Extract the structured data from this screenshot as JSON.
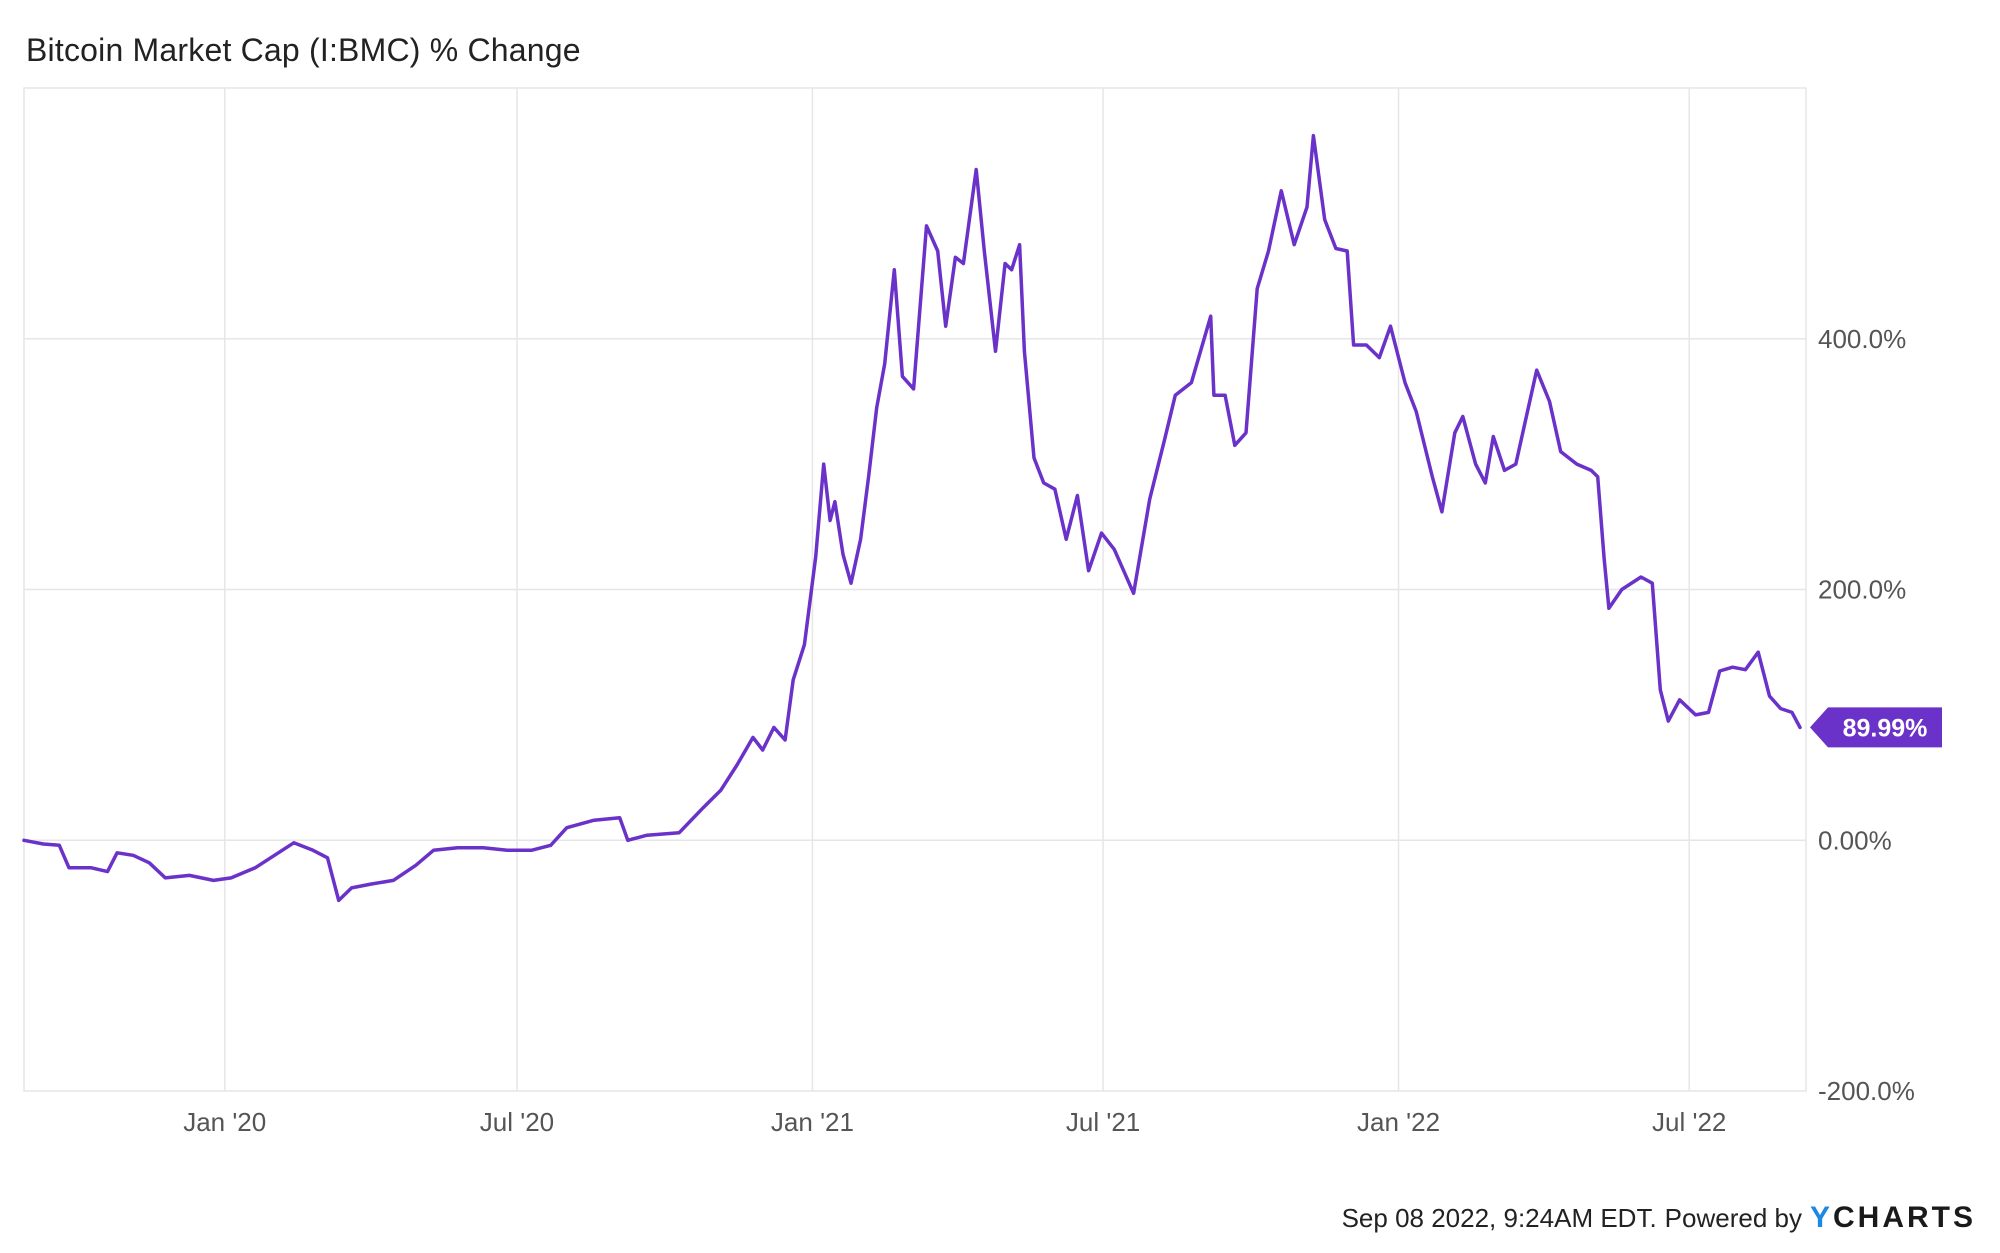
{
  "page": {
    "title": "Bitcoin Market Cap (I:BMC) % Change",
    "timestamp": "Sep 08 2022, 9:24AM EDT.",
    "powered_by": "Powered by",
    "brand_first": "Y",
    "brand_rest": "CHARTS"
  },
  "colors": {
    "line": "#6a32c9",
    "grid": "#e6e6e6",
    "axis_text": "#555555",
    "badge_bg": "#6a32c9",
    "badge_text": "#ffffff"
  },
  "chart_data": {
    "type": "line",
    "title": "Bitcoin Market Cap (I:BMC) % Change",
    "xlabel": "",
    "ylabel": "",
    "grid": true,
    "y_axis_position": "right",
    "ylim": [
      -200,
      600
    ],
    "xlim": [
      "2019-08-29",
      "2022-09-08"
    ],
    "y_ticks": [
      {
        "value": 400,
        "label": "400.0%"
      },
      {
        "value": 200,
        "label": "200.0%"
      },
      {
        "value": 0,
        "label": "0.00%"
      },
      {
        "value": -200,
        "label": "-200.0%"
      }
    ],
    "x_ticks": [
      {
        "date": "2020-01-01",
        "label": "Jan '20"
      },
      {
        "date": "2020-07-01",
        "label": "Jul '20"
      },
      {
        "date": "2021-01-01",
        "label": "Jan '21"
      },
      {
        "date": "2021-07-01",
        "label": "Jul '21"
      },
      {
        "date": "2022-01-01",
        "label": "Jan '22"
      },
      {
        "date": "2022-07-01",
        "label": "Jul '22"
      }
    ],
    "last_value_label": "89.99%",
    "series": [
      {
        "values": [
          [
            "2019-08-29",
            0
          ],
          [
            "2019-09-10",
            -3
          ],
          [
            "2019-09-20",
            -4
          ],
          [
            "2019-09-26",
            -22
          ],
          [
            "2019-10-10",
            -22
          ],
          [
            "2019-10-20",
            -25
          ],
          [
            "2019-10-26",
            -10
          ],
          [
            "2019-11-05",
            -12
          ],
          [
            "2019-11-15",
            -18
          ],
          [
            "2019-11-25",
            -30
          ],
          [
            "2019-12-10",
            -28
          ],
          [
            "2019-12-25",
            -32
          ],
          [
            "2020-01-05",
            -30
          ],
          [
            "2020-01-20",
            -22
          ],
          [
            "2020-02-01",
            -12
          ],
          [
            "2020-02-13",
            -2
          ],
          [
            "2020-02-25",
            -8
          ],
          [
            "2020-03-05",
            -14
          ],
          [
            "2020-03-12",
            -48
          ],
          [
            "2020-03-20",
            -38
          ],
          [
            "2020-04-01",
            -35
          ],
          [
            "2020-04-15",
            -32
          ],
          [
            "2020-04-29",
            -20
          ],
          [
            "2020-05-10",
            -8
          ],
          [
            "2020-05-25",
            -6
          ],
          [
            "2020-06-10",
            -6
          ],
          [
            "2020-06-25",
            -8
          ],
          [
            "2020-07-10",
            -8
          ],
          [
            "2020-07-22",
            -4
          ],
          [
            "2020-08-01",
            10
          ],
          [
            "2020-08-18",
            16
          ],
          [
            "2020-09-03",
            18
          ],
          [
            "2020-09-08",
            0
          ],
          [
            "2020-09-20",
            4
          ],
          [
            "2020-10-10",
            6
          ],
          [
            "2020-10-25",
            26
          ],
          [
            "2020-11-05",
            40
          ],
          [
            "2020-11-15",
            60
          ],
          [
            "2020-11-25",
            82
          ],
          [
            "2020-12-01",
            72
          ],
          [
            "2020-12-08",
            90
          ],
          [
            "2020-12-15",
            80
          ],
          [
            "2020-12-20",
            128
          ],
          [
            "2020-12-27",
            156
          ],
          [
            "2021-01-03",
            226
          ],
          [
            "2021-01-08",
            300
          ],
          [
            "2021-01-12",
            255
          ],
          [
            "2021-01-15",
            270
          ],
          [
            "2021-01-20",
            228
          ],
          [
            "2021-01-25",
            205
          ],
          [
            "2021-01-31",
            240
          ],
          [
            "2021-02-05",
            290
          ],
          [
            "2021-02-10",
            345
          ],
          [
            "2021-02-15",
            380
          ],
          [
            "2021-02-21",
            455
          ],
          [
            "2021-02-26",
            370
          ],
          [
            "2021-03-05",
            360
          ],
          [
            "2021-03-13",
            490
          ],
          [
            "2021-03-20",
            470
          ],
          [
            "2021-03-25",
            410
          ],
          [
            "2021-03-31",
            465
          ],
          [
            "2021-04-05",
            460
          ],
          [
            "2021-04-13",
            535
          ],
          [
            "2021-04-18",
            470
          ],
          [
            "2021-04-25",
            390
          ],
          [
            "2021-05-01",
            460
          ],
          [
            "2021-05-05",
            455
          ],
          [
            "2021-05-10",
            475
          ],
          [
            "2021-05-13",
            390
          ],
          [
            "2021-05-19",
            305
          ],
          [
            "2021-05-25",
            285
          ],
          [
            "2021-06-01",
            280
          ],
          [
            "2021-06-08",
            240
          ],
          [
            "2021-06-15",
            275
          ],
          [
            "2021-06-22",
            215
          ],
          [
            "2021-06-30",
            245
          ],
          [
            "2021-07-08",
            232
          ],
          [
            "2021-07-20",
            197
          ],
          [
            "2021-07-30",
            272
          ],
          [
            "2021-08-08",
            318
          ],
          [
            "2021-08-15",
            355
          ],
          [
            "2021-08-25",
            365
          ],
          [
            "2021-09-06",
            418
          ],
          [
            "2021-09-08",
            355
          ],
          [
            "2021-09-15",
            355
          ],
          [
            "2021-09-21",
            315
          ],
          [
            "2021-09-28",
            325
          ],
          [
            "2021-10-05",
            440
          ],
          [
            "2021-10-12",
            470
          ],
          [
            "2021-10-20",
            518
          ],
          [
            "2021-10-28",
            475
          ],
          [
            "2021-11-05",
            505
          ],
          [
            "2021-11-09",
            562
          ],
          [
            "2021-11-16",
            495
          ],
          [
            "2021-11-23",
            472
          ],
          [
            "2021-11-30",
            470
          ],
          [
            "2021-12-04",
            395
          ],
          [
            "2021-12-12",
            395
          ],
          [
            "2021-12-20",
            385
          ],
          [
            "2021-12-27",
            410
          ],
          [
            "2022-01-05",
            365
          ],
          [
            "2022-01-12",
            342
          ],
          [
            "2022-01-22",
            290
          ],
          [
            "2022-01-28",
            262
          ],
          [
            "2022-02-05",
            325
          ],
          [
            "2022-02-10",
            338
          ],
          [
            "2022-02-18",
            300
          ],
          [
            "2022-02-24",
            285
          ],
          [
            "2022-03-01",
            322
          ],
          [
            "2022-03-08",
            295
          ],
          [
            "2022-03-15",
            300
          ],
          [
            "2022-03-28",
            375
          ],
          [
            "2022-04-05",
            350
          ],
          [
            "2022-04-12",
            310
          ],
          [
            "2022-04-22",
            300
          ],
          [
            "2022-05-01",
            295
          ],
          [
            "2022-05-05",
            290
          ],
          [
            "2022-05-09",
            225
          ],
          [
            "2022-05-12",
            185
          ],
          [
            "2022-05-20",
            200
          ],
          [
            "2022-06-01",
            210
          ],
          [
            "2022-06-08",
            205
          ],
          [
            "2022-06-13",
            120
          ],
          [
            "2022-06-18",
            95
          ],
          [
            "2022-06-25",
            112
          ],
          [
            "2022-07-05",
            100
          ],
          [
            "2022-07-13",
            102
          ],
          [
            "2022-07-20",
            135
          ],
          [
            "2022-07-28",
            138
          ],
          [
            "2022-08-05",
            136
          ],
          [
            "2022-08-13",
            150
          ],
          [
            "2022-08-20",
            115
          ],
          [
            "2022-08-27",
            105
          ],
          [
            "2022-09-03",
            102
          ],
          [
            "2022-09-08",
            90
          ]
        ]
      }
    ]
  }
}
